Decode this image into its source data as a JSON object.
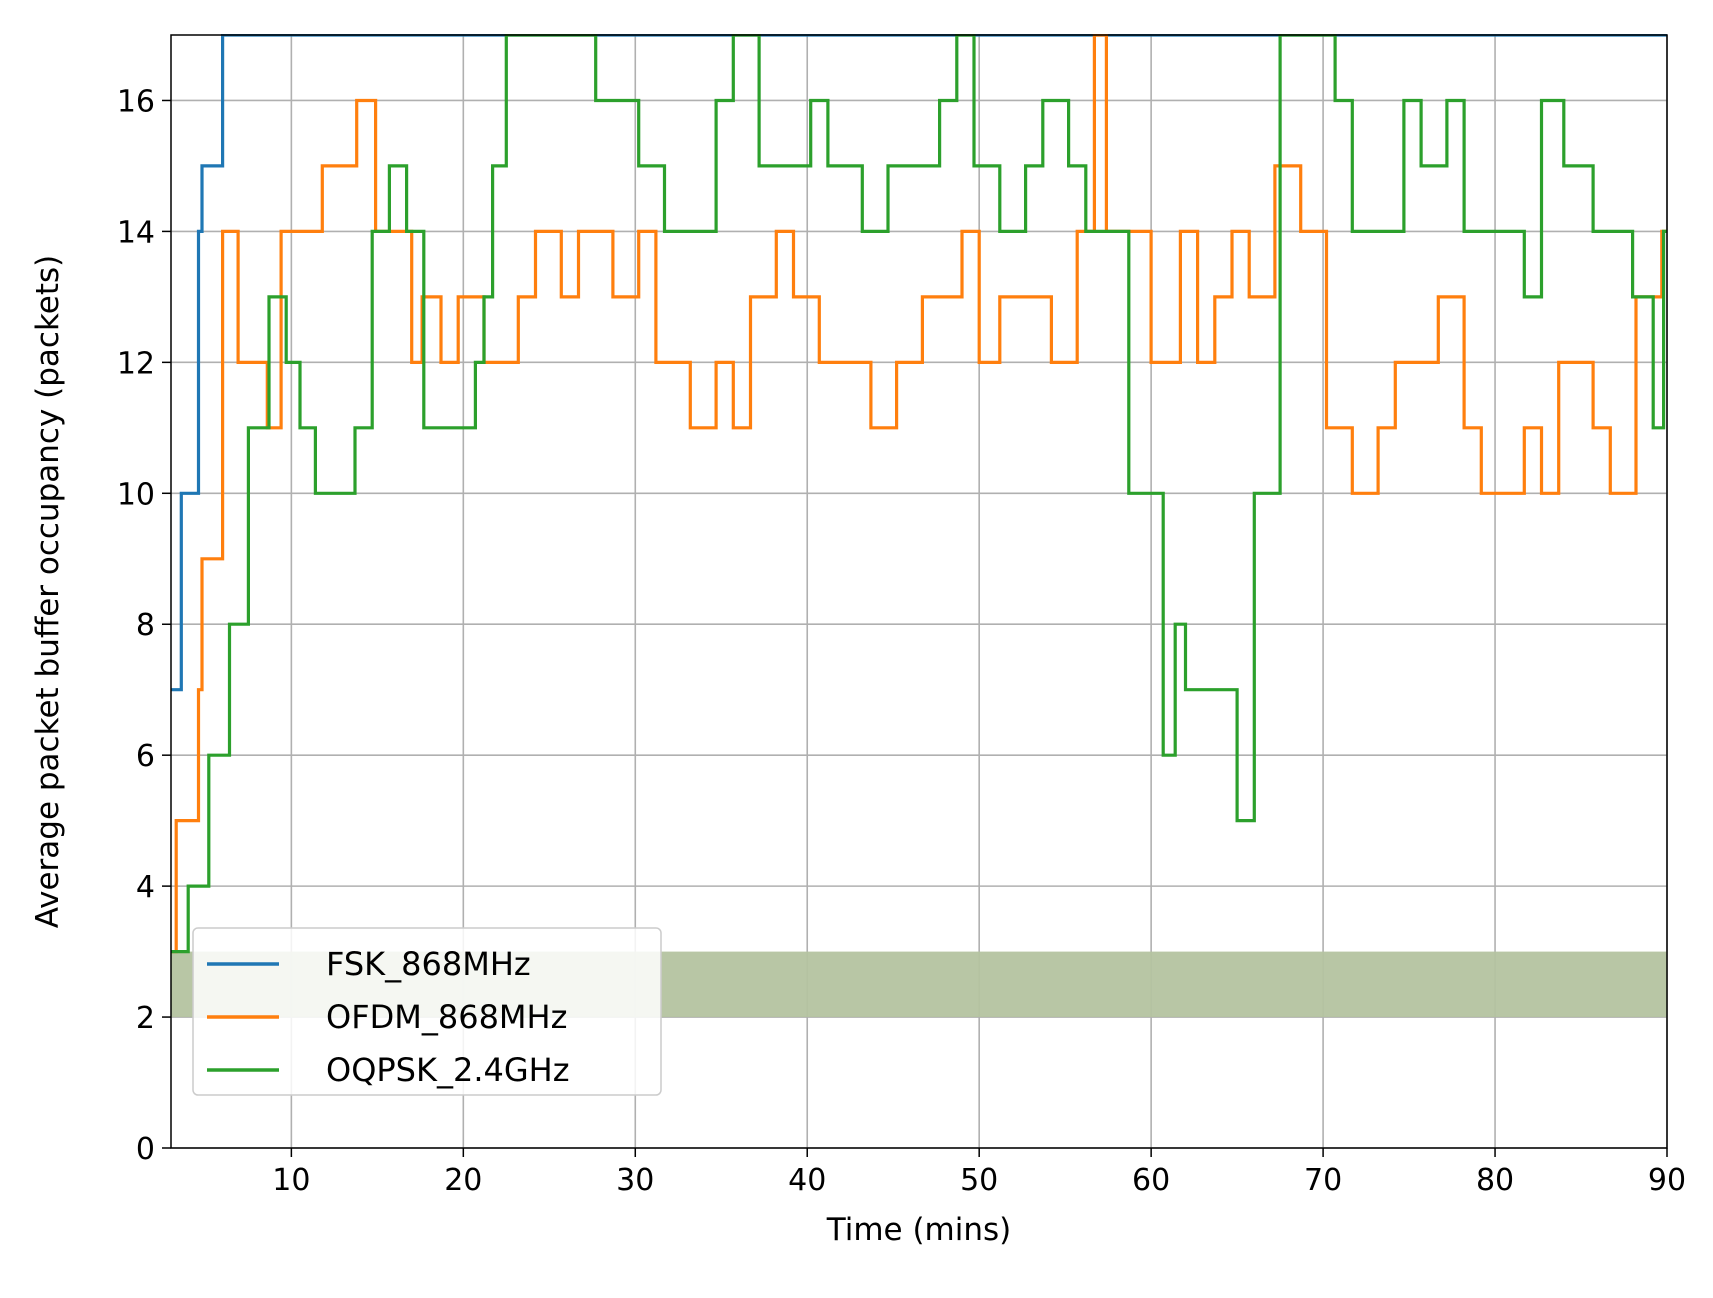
{
  "chart_data": {
    "type": "line",
    "title": "",
    "xlabel": "Time (mins)",
    "ylabel": "Average packet buffer occupancy (packets)",
    "xlim": [
      3,
      90
    ],
    "ylim": [
      0,
      17
    ],
    "xticks": [
      10,
      20,
      30,
      40,
      50,
      60,
      70,
      80,
      90
    ],
    "yticks": [
      0,
      2,
      4,
      6,
      8,
      10,
      12,
      14,
      16
    ],
    "grid": true,
    "legend_position": "lower-left",
    "step": true,
    "series": [
      {
        "name": "FSK_868MHz",
        "color": "#1f77b4",
        "points": [
          [
            3,
            7
          ],
          [
            3.5,
            7
          ],
          [
            3.6,
            10
          ],
          [
            4.5,
            10
          ],
          [
            4.6,
            14
          ],
          [
            4.8,
            15
          ],
          [
            5.8,
            15
          ],
          [
            6.0,
            17
          ],
          [
            90,
            17
          ]
        ]
      },
      {
        "name": "OFDM_868MHz",
        "color": "#ff7f0e",
        "points": [
          [
            3,
            3
          ],
          [
            3.3,
            5
          ],
          [
            4.5,
            5
          ],
          [
            4.6,
            7
          ],
          [
            4.8,
            9
          ],
          [
            5.8,
            9
          ],
          [
            6.0,
            14
          ],
          [
            6.8,
            14
          ],
          [
            6.9,
            12
          ],
          [
            8.5,
            12
          ],
          [
            8.6,
            11
          ],
          [
            9.2,
            11
          ],
          [
            9.4,
            14
          ],
          [
            11.5,
            14
          ],
          [
            11.8,
            15
          ],
          [
            13.5,
            15
          ],
          [
            13.8,
            16
          ],
          [
            14.8,
            16
          ],
          [
            14.9,
            14
          ],
          [
            16.8,
            14
          ],
          [
            17,
            12
          ],
          [
            17.5,
            12
          ],
          [
            17.6,
            13
          ],
          [
            18.5,
            13
          ],
          [
            18.7,
            12
          ],
          [
            19.5,
            12
          ],
          [
            19.7,
            13
          ],
          [
            21.0,
            13
          ],
          [
            21.2,
            12
          ],
          [
            23.0,
            12
          ],
          [
            23.2,
            13
          ],
          [
            24.0,
            13
          ],
          [
            24.2,
            14
          ],
          [
            25.5,
            14
          ],
          [
            25.7,
            13
          ],
          [
            26.5,
            13
          ],
          [
            26.7,
            14
          ],
          [
            28.5,
            14
          ],
          [
            28.7,
            13
          ],
          [
            30.0,
            13
          ],
          [
            30.2,
            14
          ],
          [
            31.0,
            14
          ],
          [
            31.2,
            12
          ],
          [
            33.0,
            12
          ],
          [
            33.2,
            11
          ],
          [
            34.5,
            11
          ],
          [
            34.7,
            12
          ],
          [
            35.5,
            12
          ],
          [
            35.7,
            11
          ],
          [
            36.5,
            11
          ],
          [
            36.7,
            13
          ],
          [
            38.0,
            13
          ],
          [
            38.2,
            14
          ],
          [
            39.0,
            14
          ],
          [
            39.2,
            13
          ],
          [
            40.5,
            13
          ],
          [
            40.7,
            12
          ],
          [
            43.5,
            12
          ],
          [
            43.7,
            11
          ],
          [
            45.0,
            11
          ],
          [
            45.2,
            12
          ],
          [
            46.5,
            12
          ],
          [
            46.7,
            13
          ],
          [
            48.8,
            13
          ],
          [
            49.0,
            14
          ],
          [
            49.8,
            14
          ],
          [
            50.0,
            12
          ],
          [
            51.0,
            12
          ],
          [
            51.2,
            13
          ],
          [
            54.0,
            13
          ],
          [
            54.2,
            12
          ],
          [
            55.5,
            12
          ],
          [
            55.7,
            14
          ],
          [
            56.5,
            14
          ],
          [
            56.7,
            17
          ],
          [
            57.2,
            17
          ],
          [
            57.4,
            14
          ],
          [
            59.8,
            14
          ],
          [
            60.0,
            12
          ],
          [
            61.5,
            12
          ],
          [
            61.7,
            14
          ],
          [
            62.5,
            14
          ],
          [
            62.7,
            12
          ],
          [
            63.5,
            12
          ],
          [
            63.7,
            13
          ],
          [
            64.5,
            13
          ],
          [
            64.7,
            14
          ],
          [
            65.5,
            14
          ],
          [
            65.7,
            13
          ],
          [
            67.0,
            13
          ],
          [
            67.2,
            15
          ],
          [
            68.5,
            15
          ],
          [
            68.7,
            14
          ],
          [
            70.0,
            14
          ],
          [
            70.2,
            11
          ],
          [
            71.5,
            11
          ],
          [
            71.7,
            10
          ],
          [
            73.0,
            10
          ],
          [
            73.2,
            11
          ],
          [
            74.0,
            11
          ],
          [
            74.2,
            12
          ],
          [
            76.5,
            12
          ],
          [
            76.7,
            13
          ],
          [
            78.0,
            13
          ],
          [
            78.2,
            11
          ],
          [
            79.0,
            11
          ],
          [
            79.2,
            10
          ],
          [
            81.5,
            10
          ],
          [
            81.7,
            11
          ],
          [
            82.5,
            11
          ],
          [
            82.7,
            10
          ],
          [
            83.5,
            10
          ],
          [
            83.7,
            12
          ],
          [
            85.5,
            12
          ],
          [
            85.7,
            11
          ],
          [
            86.5,
            11
          ],
          [
            86.7,
            10
          ],
          [
            88.0,
            10
          ],
          [
            88.2,
            13
          ],
          [
            89.5,
            13
          ],
          [
            89.7,
            14
          ],
          [
            90,
            14
          ]
        ]
      },
      {
        "name": "OQPSK_2.4GHz",
        "color": "#2ca02c",
        "points": [
          [
            3,
            3
          ],
          [
            3.8,
            3
          ],
          [
            4.0,
            4
          ],
          [
            5.0,
            4
          ],
          [
            5.2,
            6
          ],
          [
            6.2,
            6
          ],
          [
            6.4,
            8
          ],
          [
            7.3,
            8
          ],
          [
            7.5,
            11
          ],
          [
            8.5,
            11
          ],
          [
            8.7,
            13
          ],
          [
            9.5,
            13
          ],
          [
            9.7,
            12
          ],
          [
            10.3,
            12
          ],
          [
            10.5,
            11
          ],
          [
            11.2,
            11
          ],
          [
            11.4,
            10
          ],
          [
            13.5,
            10
          ],
          [
            13.7,
            11
          ],
          [
            14.5,
            11
          ],
          [
            14.7,
            14
          ],
          [
            15.5,
            14
          ],
          [
            15.7,
            15
          ],
          [
            16.5,
            15
          ],
          [
            16.7,
            14
          ],
          [
            17.5,
            14
          ],
          [
            17.7,
            11
          ],
          [
            20.5,
            11
          ],
          [
            20.7,
            12
          ],
          [
            21.0,
            12
          ],
          [
            21.2,
            13
          ],
          [
            21.5,
            13
          ],
          [
            21.7,
            15
          ],
          [
            22.3,
            15
          ],
          [
            22.5,
            17
          ],
          [
            27.5,
            17
          ],
          [
            27.7,
            16
          ],
          [
            30.0,
            16
          ],
          [
            30.2,
            15
          ],
          [
            31.5,
            15
          ],
          [
            31.7,
            14
          ],
          [
            34.5,
            14
          ],
          [
            34.7,
            16
          ],
          [
            35.5,
            16
          ],
          [
            35.7,
            17
          ],
          [
            37.0,
            17
          ],
          [
            37.2,
            15
          ],
          [
            40.0,
            15
          ],
          [
            40.2,
            16
          ],
          [
            41.0,
            16
          ],
          [
            41.2,
            15
          ],
          [
            43.0,
            15
          ],
          [
            43.2,
            14
          ],
          [
            44.5,
            14
          ],
          [
            44.7,
            15
          ],
          [
            47.5,
            15
          ],
          [
            47.7,
            16
          ],
          [
            48.5,
            16
          ],
          [
            48.7,
            17
          ],
          [
            49.5,
            17
          ],
          [
            49.7,
            15
          ],
          [
            51.0,
            15
          ],
          [
            51.2,
            14
          ],
          [
            52.5,
            14
          ],
          [
            52.7,
            15
          ],
          [
            53.5,
            15
          ],
          [
            53.7,
            16
          ],
          [
            55.0,
            16
          ],
          [
            55.2,
            15
          ],
          [
            56.0,
            15
          ],
          [
            56.2,
            14
          ],
          [
            58.5,
            14
          ],
          [
            58.7,
            10
          ],
          [
            60.5,
            10
          ],
          [
            60.7,
            6
          ],
          [
            61.2,
            6
          ],
          [
            61.4,
            8
          ],
          [
            61.8,
            8
          ],
          [
            62.0,
            7
          ],
          [
            64.8,
            7
          ],
          [
            65.0,
            5
          ],
          [
            65.8,
            5
          ],
          [
            66.0,
            10
          ],
          [
            67.3,
            10
          ],
          [
            67.5,
            17
          ],
          [
            70.5,
            17
          ],
          [
            70.7,
            16
          ],
          [
            71.5,
            16
          ],
          [
            71.7,
            14
          ],
          [
            74.5,
            14
          ],
          [
            74.7,
            16
          ],
          [
            75.5,
            16
          ],
          [
            75.7,
            15
          ],
          [
            77.0,
            15
          ],
          [
            77.2,
            16
          ],
          [
            78.0,
            16
          ],
          [
            78.2,
            14
          ],
          [
            81.5,
            14
          ],
          [
            81.7,
            13
          ],
          [
            82.5,
            13
          ],
          [
            82.7,
            16
          ],
          [
            83.8,
            16
          ],
          [
            84.0,
            15
          ],
          [
            85.5,
            15
          ],
          [
            85.7,
            14
          ],
          [
            87.8,
            14
          ],
          [
            88.0,
            13
          ],
          [
            89.0,
            13
          ],
          [
            89.2,
            11
          ],
          [
            89.6,
            11
          ],
          [
            89.8,
            14
          ],
          [
            90,
            14
          ]
        ]
      }
    ],
    "band": {
      "from": 2,
      "to": 3,
      "color": "#b4c3a0"
    }
  }
}
